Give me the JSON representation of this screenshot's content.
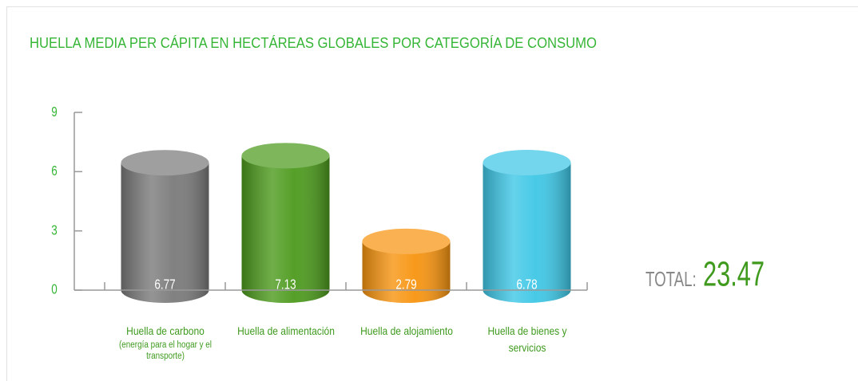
{
  "chart_data": {
    "type": "cylinder-bar",
    "title": "HUELLA MEDIA PER CÁPITA EN HECTÁREAS GLOBALES POR CATEGORÍA DE CONSUMO",
    "categories": [
      "Huella de carbono",
      "Huella de alimentación",
      "Huella de alojamiento",
      "Huella de bienes y servicios"
    ],
    "category_notes": [
      "(energía para el hogar y el transporte)",
      null,
      null,
      null
    ],
    "values": [
      6.77,
      7.13,
      2.79,
      6.78
    ],
    "colors": [
      "#7a7a7a",
      "#4c9a1c",
      "#f7940f",
      "#3ec7e6"
    ],
    "ylim": [
      0,
      9
    ],
    "yticks": [
      0,
      3,
      6,
      9
    ],
    "total_label": "TOTAL:",
    "total": 23.47
  }
}
